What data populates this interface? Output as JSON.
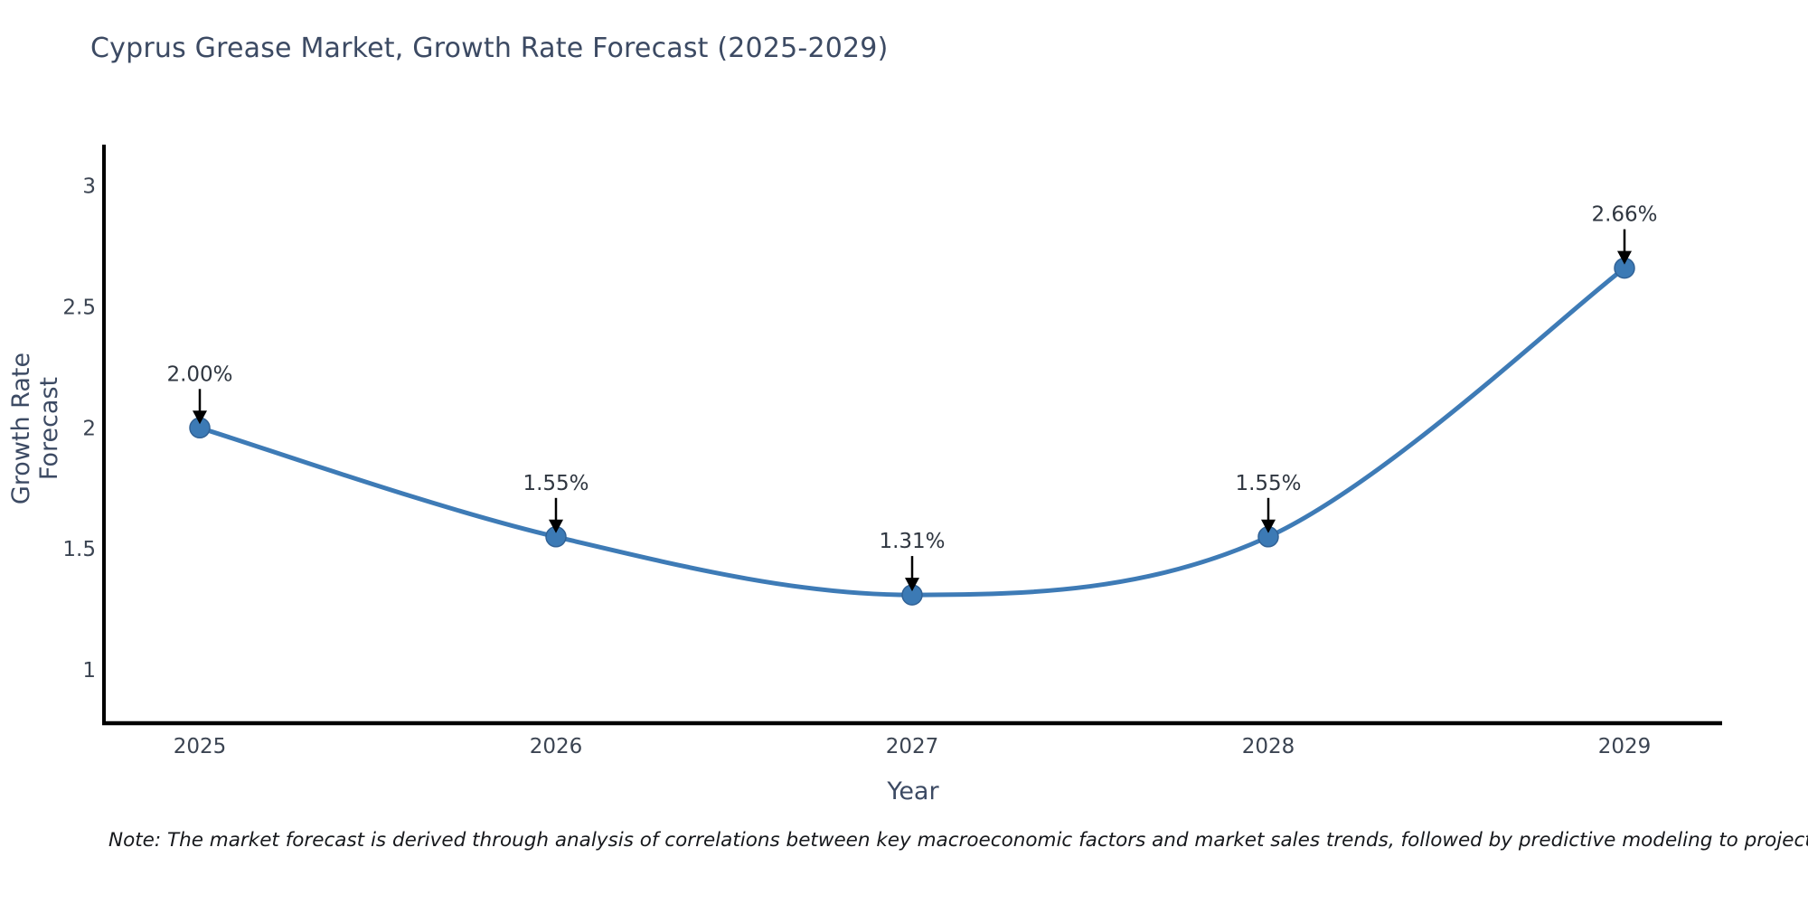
{
  "chart_data": {
    "type": "line",
    "title": "Cyprus Grease Market, Growth Rate Forecast (2025-2029)",
    "xlabel": "Year",
    "ylabel": "Growth Rate Forecast",
    "x": [
      2025,
      2026,
      2027,
      2028,
      2029
    ],
    "xticklabels": [
      "2025",
      "2026",
      "2027",
      "2028",
      "2029"
    ],
    "series": [
      {
        "name": "Growth Rate Forecast",
        "values": [
          2.0,
          1.55,
          1.31,
          1.55,
          2.66
        ],
        "point_labels": [
          "2.00%",
          "1.55%",
          "1.31%",
          "1.55%",
          "2.66%"
        ]
      }
    ],
    "yticks": [
      1,
      1.5,
      2,
      2.5,
      3
    ],
    "ylim": [
      0.78,
      3.17
    ],
    "grid": false,
    "legend_position": "none",
    "smooth": true,
    "colors": {
      "line": "#3e7bb6",
      "marker_fill": "#3c7ab5",
      "marker_edge": "#316296",
      "axis": "#000000",
      "annotation_arrow": "#000000",
      "title_text": "#3c4a63",
      "tick_text": "#3b4452"
    },
    "note": "Note: The market forecast is derived through analysis of correlations between key macroeconomic factors and market sales trends, followed by predictive modeling to project future sales"
  }
}
